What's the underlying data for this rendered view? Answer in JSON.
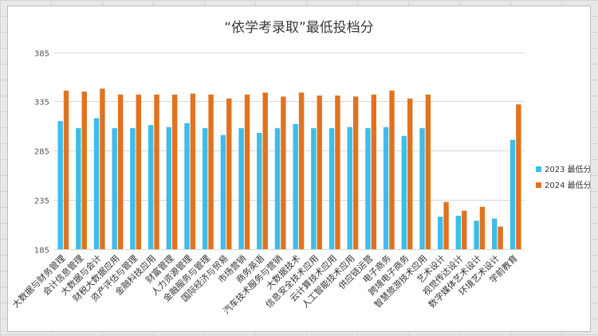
{
  "chart_data": {
    "type": "bar",
    "title": "“依学考录取”最低投档分",
    "xlabel": "",
    "ylabel": "",
    "ylim": [
      185,
      400
    ],
    "yticks": [
      185,
      235,
      285,
      335,
      385
    ],
    "grid": "horizontal",
    "legend_position": "right",
    "categories": [
      "大数据与财务管理",
      "会计信息管理",
      "大数据与会计",
      "财税大数据应用",
      "资产评估与管理",
      "金融科技应用",
      "财富管理",
      "人力资源管理",
      "金融服务与管理",
      "国际经济与贸易",
      "市场营销",
      "商务英语",
      "汽车技术服务与营销",
      "大数据技术",
      "信息安全技术应用",
      "云计算技术应用",
      "人工智能技术应用",
      "供应链运营",
      "电子商务",
      "跨境电子商务",
      "智慧旅游技术应用",
      "艺术设计",
      "视觉传达设计",
      "数字媒体艺术设计",
      "环境艺术设计",
      "学前教育"
    ],
    "series": [
      {
        "name": "2023 最低分",
        "color": "#3fbce8",
        "values": [
          315,
          308,
          318,
          308,
          308,
          311,
          309,
          313,
          308,
          301,
          308,
          303,
          308,
          312,
          308,
          308,
          309,
          308,
          309,
          300,
          308,
          218,
          219,
          214,
          216,
          296
        ]
      },
      {
        "name": "2024 最低分",
        "color": "#e0731f",
        "values": [
          346,
          345,
          348,
          342,
          342,
          342,
          342,
          343,
          342,
          338,
          342,
          344,
          340,
          344,
          341,
          341,
          340,
          342,
          346,
          338,
          342,
          233,
          224,
          228,
          208,
          332
        ]
      }
    ]
  }
}
